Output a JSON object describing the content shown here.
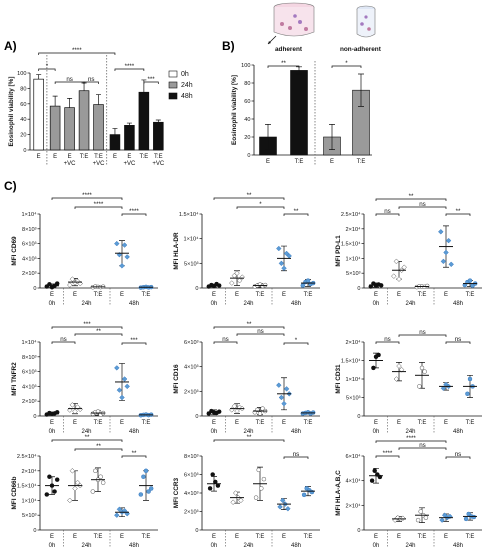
{
  "figure": {
    "panel_a": "A)",
    "panel_b": "B)",
    "panel_c": "C)",
    "adherent_label": "adherent",
    "non_adherent_label": "non-adherent"
  },
  "chart_data": [
    {
      "id": "A",
      "type": "bar",
      "ylabel": "Eosinophil viability [%]",
      "ylim": [
        0,
        100
      ],
      "yticks": [
        0,
        20,
        40,
        60,
        80,
        100
      ],
      "categories": [
        "E",
        "E",
        "E +VC",
        "T:E",
        "T:E +VC",
        "E",
        "E +VC",
        "T:E",
        "T:E +VC"
      ],
      "bar_groups": [
        "0h",
        "24h",
        "24h",
        "24h",
        "24h",
        "48h",
        "48h",
        "48h",
        "48h"
      ],
      "values": [
        92,
        57,
        55,
        77,
        59,
        20,
        32,
        75,
        36
      ],
      "errors": [
        6,
        13,
        12,
        10,
        13,
        8,
        3,
        16,
        3
      ],
      "legend": [
        {
          "label": "0h",
          "color": "#ffffff"
        },
        {
          "label": "24h",
          "color": "#9a9a9a"
        },
        {
          "label": "48h",
          "color": "#111111"
        }
      ],
      "significance": [
        "*",
        "ns",
        "ns",
        "****",
        "****",
        "***"
      ]
    },
    {
      "id": "B",
      "type": "bar",
      "ylabel": "Eosinophil viability [%]",
      "ylim": [
        0,
        100
      ],
      "yticks": [
        0,
        20,
        40,
        60,
        80,
        100
      ],
      "categories": [
        "E",
        "T:E",
        "E",
        "T:E"
      ],
      "bar_groups": [
        "adherent",
        "adherent",
        "non-adherent",
        "non-adherent"
      ],
      "values": [
        20,
        94,
        20,
        72
      ],
      "errors": [
        14,
        4,
        14,
        18
      ],
      "colors": [
        "#111111",
        "#111111",
        "#9a9a9a",
        "#9a9a9a"
      ],
      "significance": [
        "**",
        "*"
      ]
    },
    {
      "id": "CD69",
      "type": "scatter",
      "ylabel": "MFI CD69",
      "ylim": [
        0,
        10000
      ],
      "yticks": [
        0,
        2000,
        4000,
        6000,
        8000,
        10000
      ],
      "ytick_labels": [
        "0",
        "2×10³",
        "4×10³",
        "6×10³",
        "8×10³",
        "1×10⁴"
      ],
      "categories": [
        "E",
        "E",
        "T:E",
        "E",
        "T:E"
      ],
      "groups": [
        "0h",
        "24h",
        "48h"
      ],
      "means": [
        300,
        800,
        150,
        4700,
        100
      ],
      "sd": [
        250,
        500,
        100,
        1700,
        80
      ],
      "points": [
        [
          200,
          500,
          100,
          300,
          600
        ],
        [
          400,
          1200,
          700,
          900,
          600
        ],
        [
          100,
          200,
          150,
          120,
          180
        ],
        [
          6000,
          4500,
          3000,
          5800,
          4200
        ],
        [
          50,
          100,
          150,
          80,
          120
        ]
      ],
      "significance": [
        "****",
        "****",
        "****"
      ]
    },
    {
      "id": "HLA-DR",
      "type": "scatter",
      "ylabel": "MFI HLA-DR",
      "ylim": [
        0,
        15000
      ],
      "yticks": [
        0,
        5000,
        10000,
        15000
      ],
      "ytick_labels": [
        "0",
        "5×10³",
        "1×10⁴",
        "1.5×10⁴"
      ],
      "categories": [
        "E",
        "E",
        "T:E",
        "E",
        "T:E"
      ],
      "groups": [
        "0h",
        "24h",
        "48h"
      ],
      "means": [
        500,
        2000,
        500,
        6000,
        1000
      ],
      "sd": [
        300,
        1500,
        400,
        2500,
        700
      ],
      "points": [
        [
          300,
          600,
          400,
          800,
          500
        ],
        [
          1000,
          2500,
          3000,
          1500,
          2200
        ],
        [
          300,
          500,
          700,
          400,
          600
        ],
        [
          8000,
          5000,
          4000,
          7000,
          6500
        ],
        [
          500,
          1200,
          1500,
          800,
          1000
        ]
      ],
      "significance": [
        "**",
        "*",
        "**"
      ]
    },
    {
      "id": "PD-L1",
      "type": "scatter",
      "ylabel": "MFI PD-L1",
      "ylim": [
        0,
        25000
      ],
      "yticks": [
        0,
        5000,
        10000,
        15000,
        20000,
        25000
      ],
      "ytick_labels": [
        "0",
        "5×10³",
        "1×10⁴",
        "1.5×10⁴",
        "2×10⁴",
        "2.5×10⁴"
      ],
      "categories": [
        "E",
        "E",
        "T:E",
        "E",
        "T:E"
      ],
      "groups": [
        "0h",
        "24h",
        "48h"
      ],
      "means": [
        1000,
        6000,
        500,
        14000,
        1500
      ],
      "sd": [
        700,
        3000,
        300,
        7000,
        1000
      ],
      "points": [
        [
          500,
          1500,
          800,
          1200,
          900
        ],
        [
          4000,
          9000,
          3000,
          6000,
          7000
        ],
        [
          300,
          600,
          500,
          400,
          700
        ],
        [
          19000,
          9000,
          12000,
          16000,
          8000
        ],
        [
          1000,
          2000,
          2500,
          800,
          1500
        ]
      ],
      "significance": [
        "ns",
        "ns",
        "**",
        "**"
      ]
    },
    {
      "id": "TNFR2",
      "type": "scatter",
      "ylabel": "MFI TNFR2",
      "ylim": [
        0,
        10000
      ],
      "yticks": [
        0,
        2000,
        4000,
        6000,
        8000,
        10000
      ],
      "ytick_labels": [
        "0",
        "2×10³",
        "4×10³",
        "6×10³",
        "8×10³",
        "1×10⁴"
      ],
      "categories": [
        "E",
        "E",
        "T:E",
        "E",
        "T:E"
      ],
      "groups": [
        "0h",
        "24h",
        "48h"
      ],
      "means": [
        300,
        1000,
        400,
        4600,
        150
      ],
      "sd": [
        200,
        700,
        300,
        2500,
        100
      ],
      "points": [
        [
          200,
          400,
          300,
          350,
          500
        ],
        [
          800,
          1500,
          600,
          1200,
          900
        ],
        [
          300,
          500,
          600,
          200,
          400
        ],
        [
          6500,
          3500,
          2500,
          5000,
          4000
        ],
        [
          100,
          150,
          200,
          120,
          180
        ]
      ],
      "significance": [
        "ns",
        "***",
        "**",
        "***"
      ]
    },
    {
      "id": "CD16",
      "type": "scatter",
      "ylabel": "MFI CD16",
      "ylim": [
        0,
        6000
      ],
      "yticks": [
        0,
        2000,
        4000,
        6000
      ],
      "ytick_labels": [
        "0",
        "2×10³",
        "4×10³",
        "6×10³"
      ],
      "categories": [
        "E",
        "E",
        "T:E",
        "E",
        "T:E"
      ],
      "groups": [
        "0h",
        "24h",
        "48h"
      ],
      "means": [
        300,
        600,
        400,
        1800,
        250
      ],
      "sd": [
        200,
        400,
        300,
        1300,
        100
      ],
      "points": [
        [
          200,
          400,
          300,
          250,
          350
        ],
        [
          500,
          800,
          400,
          700,
          600
        ],
        [
          300,
          500,
          200,
          600,
          400
        ],
        [
          2500,
          1500,
          1000,
          2200,
          1800
        ],
        [
          200,
          250,
          300,
          200,
          280
        ]
      ],
      "significance": [
        "ns",
        "**",
        "ns",
        "*"
      ]
    },
    {
      "id": "CD31",
      "type": "scatter",
      "ylabel": "MFI CD31",
      "ylim": [
        0,
        20000
      ],
      "yticks": [
        0,
        5000,
        10000,
        15000,
        20000
      ],
      "ytick_labels": [
        "0",
        "5×10³",
        "1×10⁴",
        "1.5×10⁴",
        "2×10⁴"
      ],
      "categories": [
        "E",
        "E",
        "T:E",
        "E",
        "T:E"
      ],
      "groups": [
        "0h",
        "24h",
        "48h"
      ],
      "means": [
        15000,
        12000,
        11000,
        8000,
        8000
      ],
      "sd": [
        2000,
        2500,
        3500,
        1000,
        3000
      ],
      "points": [
        [
          13000,
          16000,
          16500
        ],
        [
          10000,
          13500,
          12500
        ],
        [
          8000,
          13000,
          12000
        ],
        [
          7500,
          8500,
          8000
        ],
        [
          6000,
          10000,
          8000
        ]
      ],
      "significance": [
        "ns",
        "ns",
        "ns"
      ]
    },
    {
      "id": "CD66b",
      "type": "scatter",
      "ylabel": "MFI CD66b",
      "ylim": [
        0,
        25000
      ],
      "yticks": [
        0,
        5000,
        10000,
        15000,
        20000,
        25000
      ],
      "ytick_labels": [
        "0",
        "5×10³",
        "1×10⁴",
        "1.5×10⁴",
        "2×10⁴",
        "2.5×10⁴"
      ],
      "categories": [
        "E",
        "E",
        "T:E",
        "E",
        "T:E"
      ],
      "groups": [
        "0h",
        "24h",
        "48h"
      ],
      "means": [
        15000,
        15000,
        17000,
        6000,
        15000
      ],
      "sd": [
        3000,
        5000,
        4000,
        1500,
        5000
      ],
      "points": [
        [
          12000,
          18000,
          15000,
          13000,
          17000
        ],
        [
          10000,
          20000,
          14000,
          16000,
          15000
        ],
        [
          13000,
          20000,
          17000,
          18000,
          16000
        ],
        [
          5000,
          7000,
          6000,
          6500,
          5500
        ],
        [
          12000,
          18000,
          20000,
          13000,
          14000
        ]
      ],
      "significance": [
        "**",
        "**",
        "**"
      ]
    },
    {
      "id": "CCR3",
      "type": "scatter",
      "ylabel": "MFI CCR3",
      "ylim": [
        0,
        8000
      ],
      "yticks": [
        0,
        2000,
        4000,
        6000,
        8000
      ],
      "ytick_labels": [
        "0",
        "2×10³",
        "4×10³",
        "6×10³",
        "8×10³"
      ],
      "categories": [
        "E",
        "E",
        "T:E",
        "E",
        "T:E"
      ],
      "groups": [
        "0h",
        "24h",
        "48h"
      ],
      "means": [
        5000,
        3500,
        5000,
        2800,
        4200
      ],
      "sd": [
        800,
        600,
        1800,
        600,
        500
      ],
      "points": [
        [
          4500,
          6000,
          5200,
          4800
        ],
        [
          3000,
          4000,
          3500,
          3200
        ],
        [
          3500,
          6500,
          4500,
          5500
        ],
        [
          2500,
          3200,
          2800,
          2300
        ],
        [
          3800,
          4500,
          4300,
          4100
        ]
      ],
      "significance": [
        "**",
        "ns"
      ]
    },
    {
      "id": "HLA-A,B,C",
      "type": "scatter",
      "ylabel": "MFI HLA-A,B,C",
      "ylim": [
        0,
        60000
      ],
      "yticks": [
        0,
        20000,
        40000,
        60000
      ],
      "ytick_labels": [
        "0",
        "2×10⁴",
        "4×10⁴",
        "6×10⁴"
      ],
      "categories": [
        "E",
        "E",
        "T:E",
        "E",
        "T:E"
      ],
      "groups": [
        "0h",
        "24h",
        "48h"
      ],
      "means": [
        44000,
        9000,
        12000,
        10000,
        11000
      ],
      "sd": [
        6000,
        2000,
        6000,
        3000,
        3000
      ],
      "points": [
        [
          40000,
          48000,
          45000,
          43000
        ],
        [
          8000,
          10000,
          9000,
          9500
        ],
        [
          8000,
          15000,
          12000,
          10000
        ],
        [
          8000,
          12000,
          10000,
          11000
        ],
        [
          9000,
          13000,
          11000,
          10500
        ]
      ],
      "significance": [
        "****",
        "****",
        "ns",
        "ns"
      ]
    }
  ]
}
